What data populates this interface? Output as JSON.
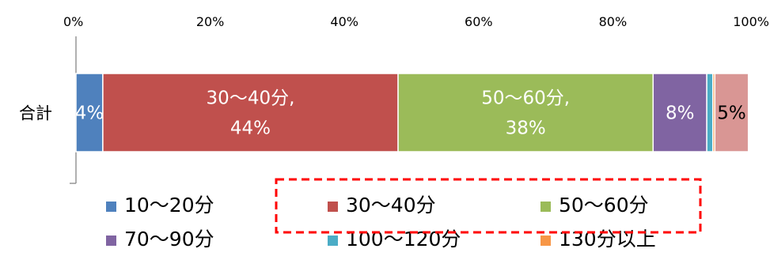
{
  "chart_data": {
    "type": "bar",
    "orientation": "horizontal",
    "stacked": "percent",
    "categories": [
      "合計"
    ],
    "xlim": [
      0,
      100
    ],
    "x_ticks": [
      "0%",
      "20%",
      "40%",
      "60%",
      "80%",
      "100%"
    ],
    "legend_position": "bottom",
    "series": [
      {
        "name": "10～20分",
        "values": [
          4
        ],
        "color": "#4f81bd",
        "label_lines": [
          "4%"
        ],
        "label_color": "#ffffff"
      },
      {
        "name": "30～40分",
        "values": [
          44
        ],
        "color": "#c0504d",
        "label_lines": [
          "30～40分,",
          "44%"
        ],
        "label_color": "#ffffff"
      },
      {
        "name": "50～60分",
        "values": [
          38
        ],
        "color": "#9bbb59",
        "label_lines": [
          "50～60分,",
          "38%"
        ],
        "label_color": "#ffffff"
      },
      {
        "name": "70～90分",
        "values": [
          8
        ],
        "color": "#8064a2",
        "label_lines": [
          "8%"
        ],
        "label_color": "#ffffff"
      },
      {
        "name": "100～120分",
        "values": [
          0.9
        ],
        "color": "#4bacc6",
        "label_lines": [],
        "label_color": "#ffffff"
      },
      {
        "name": "130分以上",
        "values": [
          0.3
        ],
        "color": "#f79646",
        "label_lines": [],
        "label_color": "#ffffff"
      },
      {
        "name": "",
        "values": [
          5
        ],
        "color": "#d99694",
        "label_lines": [
          "5%"
        ],
        "label_color": "#000000"
      }
    ],
    "highlight": {
      "style": "dashed",
      "color": "#ff0000",
      "series": [
        "30～40分",
        "50～60分"
      ]
    }
  }
}
